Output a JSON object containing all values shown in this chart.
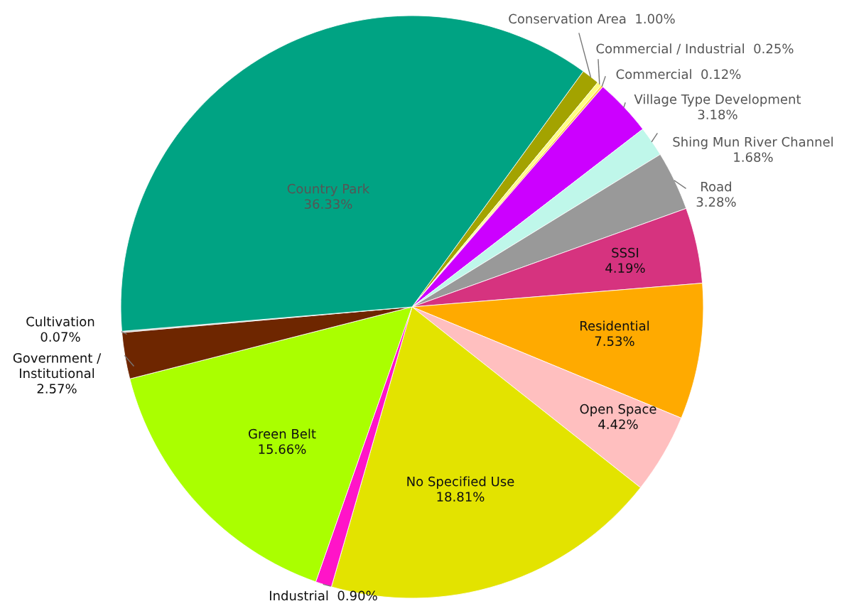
{
  "chart_data": {
    "type": "pie",
    "categories": [
      "Conservation Area",
      "Commercial / Industrial",
      "Commercial",
      "Village Type Development",
      "Shing Mun River Channel",
      "Road",
      "SSSI",
      "Residential",
      "Open Space",
      "No Specified Use",
      "Industrial",
      "Green Belt",
      "Government /\nInstitutional",
      "Cultivation",
      "Country Park"
    ],
    "values": [
      1.0,
      0.25,
      0.12,
      3.18,
      1.68,
      3.28,
      4.19,
      7.53,
      4.42,
      18.81,
      0.9,
      15.66,
      2.57,
      0.07,
      36.33
    ],
    "value_labels": [
      "1.00%",
      "0.25%",
      "0.12%",
      "3.18%",
      "1.68%",
      "3.28%",
      "4.19%",
      "7.53%",
      "4.42%",
      "18.81%",
      "0.90%",
      "15.66%",
      "2.57%",
      "0.07%",
      "36.33%"
    ],
    "colors": [
      "#a3a300",
      "#ffff80",
      "#ffd24d",
      "#cc00ff",
      "#bff7ea",
      "#999999",
      "#d6337f",
      "#ffaa00",
      "#ffbfbf",
      "#e3e300",
      "#ff14c8",
      "#aaff00",
      "#6e2600",
      "#bbbbbb",
      "#00a383"
    ]
  }
}
